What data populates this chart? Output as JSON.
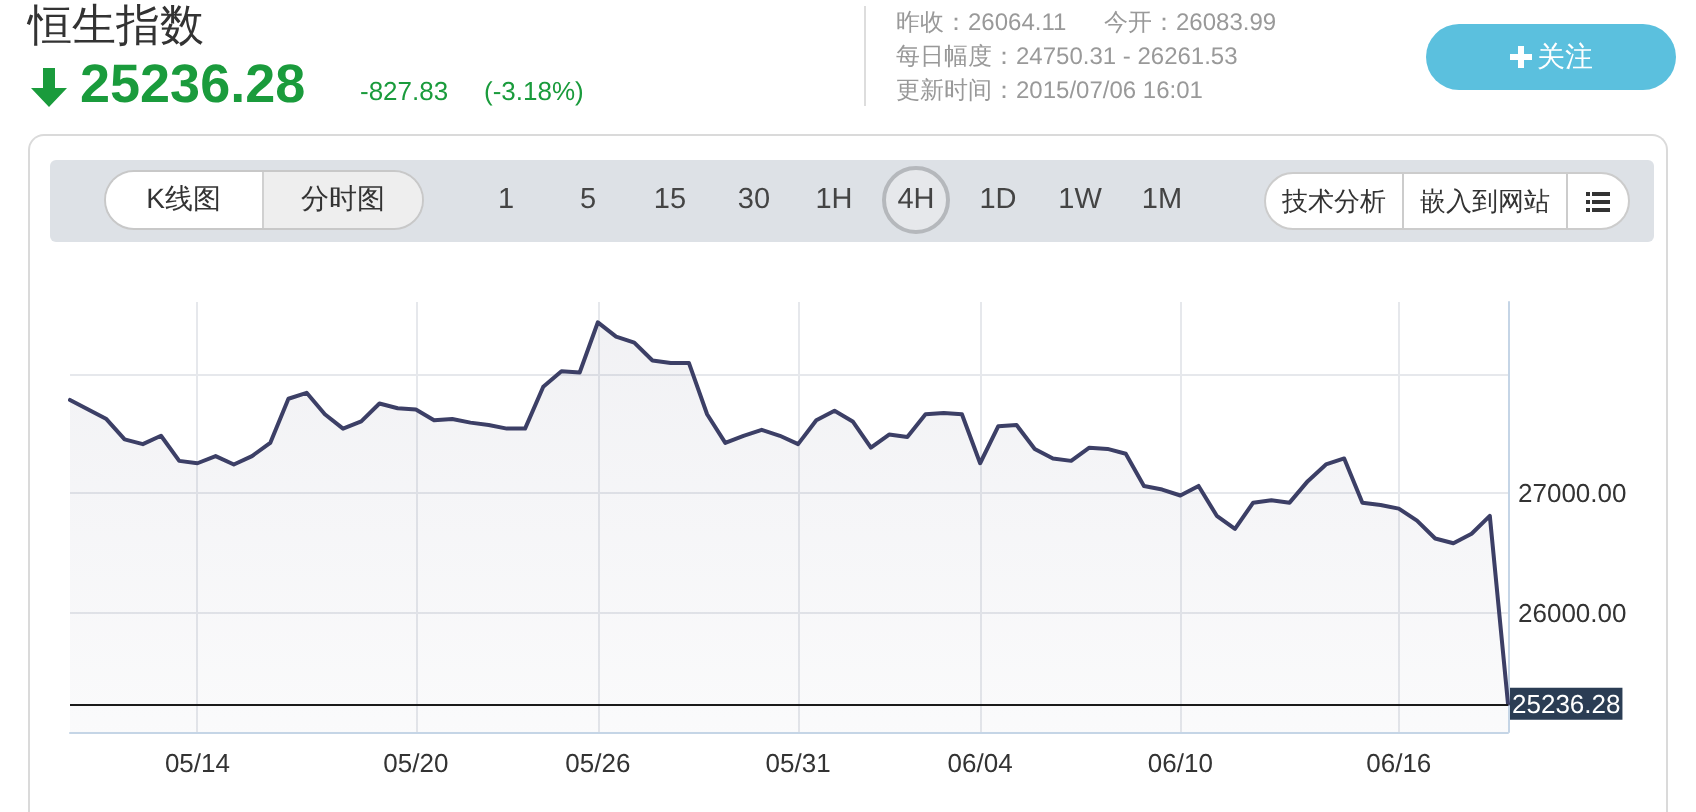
{
  "chart_data": {
    "type": "area",
    "title": "恒生指数",
    "subtitle": "25236.28",
    "annotations": [
      "-827.83",
      "(-3.18%)",
      "昨收：26064.11",
      "今开：26083.99",
      "每日幅度：24750.31 - 26261.53",
      "更新时间：2015/07/06 16:01",
      "关注",
      "K线图",
      "分时图",
      "1",
      "5",
      "15",
      "30",
      "1H",
      "4H",
      "1D",
      "1W",
      "1M",
      "技术分析",
      "嵌入到网站"
    ],
    "categories": [
      null,
      null,
      null,
      null,
      null,
      null,
      null,
      "05/14",
      null,
      null,
      null,
      null,
      null,
      null,
      null,
      null,
      null,
      null,
      null,
      "05/20",
      null,
      null,
      null,
      null,
      null,
      null,
      null,
      null,
      null,
      "05/26",
      null,
      null,
      null,
      null,
      null,
      null,
      null,
      null,
      null,
      null,
      "05/31",
      null,
      null,
      null,
      null,
      null,
      null,
      null,
      null,
      null,
      "06/04",
      null,
      null,
      null,
      null,
      null,
      null,
      null,
      null,
      null,
      null,
      "06/10",
      null,
      null,
      null,
      null,
      null,
      null,
      null,
      null,
      null,
      null,
      null,
      "06/16",
      null,
      null,
      null,
      null,
      null,
      null
    ],
    "values": [
      27780,
      27700,
      27620,
      27450,
      27410,
      27480,
      27270,
      27250,
      27310,
      27240,
      27310,
      27420,
      27790,
      27840,
      27660,
      27540,
      27600,
      27750,
      27710,
      27700,
      27610,
      27620,
      27590,
      27570,
      27540,
      27540,
      27890,
      28020,
      28010,
      28430,
      28310,
      28260,
      28110,
      28090,
      28090,
      27660,
      27420,
      27480,
      27530,
      27480,
      27410,
      27610,
      27690,
      27600,
      27380,
      27490,
      27470,
      27660,
      27670,
      27660,
      27250,
      27560,
      27570,
      27370,
      27290,
      27270,
      27380,
      27370,
      27330,
      27060,
      27030,
      26980,
      27060,
      26810,
      26700,
      26920,
      26940,
      26920,
      27100,
      27240,
      27290,
      26920,
      26900,
      26870,
      26770,
      26620,
      26580,
      26660,
      26810,
      25236.28
    ],
    "color": "#3c3f66",
    "ylim": [
      25000,
      28600
    ],
    "yticks": [
      {
        "value": 28000,
        "label": null
      },
      {
        "value": 27000,
        "label": "27000.00"
      },
      {
        "value": 26000,
        "label": "26000.00"
      }
    ],
    "grid": true,
    "marker": "none",
    "ref_lines": [
      {
        "axis": "y",
        "value": 25236.28,
        "label": "25236.28",
        "color": "#1a1a1a"
      }
    ]
  }
}
